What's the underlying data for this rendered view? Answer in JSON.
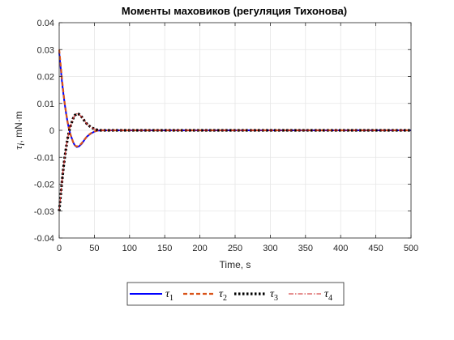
{
  "chart_data": {
    "type": "line",
    "title": "Моменты маховиков (регуляция Тихонова)",
    "xlabel": "Time, s",
    "ylabel": {
      "symbol": "τ",
      "sub": "i",
      "unit": ", mN·m"
    },
    "xlim": [
      0,
      500
    ],
    "ylim": [
      -0.04,
      0.04
    ],
    "xticks": [
      0,
      50,
      100,
      150,
      200,
      250,
      300,
      350,
      400,
      450,
      500
    ],
    "xtick_labels": [
      "0",
      "50",
      "100",
      "150",
      "200",
      "250",
      "300",
      "350",
      "400",
      "450",
      "500"
    ],
    "yticks": [
      -0.04,
      -0.03,
      -0.02,
      -0.01,
      0,
      0.01,
      0.02,
      0.03,
      0.04
    ],
    "ytick_labels": [
      "-0.04",
      "-0.03",
      "-0.02",
      "-0.01",
      "0",
      "0.01",
      "0.02",
      "0.03",
      "0.04"
    ],
    "grid": true,
    "legend_position": "bottom-center",
    "series": [
      {
        "symbol": "τ",
        "sub": "1",
        "color": "#0000ff",
        "style": "solid",
        "x": [
          0,
          2,
          4,
          6,
          8,
          10,
          12,
          14,
          16,
          18,
          20,
          22,
          25,
          28,
          32,
          36,
          40,
          45,
          50,
          55,
          60,
          70,
          80,
          100,
          500
        ],
        "y": [
          0.029,
          0.0235,
          0.018,
          0.0135,
          0.0095,
          0.006,
          0.003,
          0.0005,
          -0.0015,
          -0.003,
          -0.0045,
          -0.0055,
          -0.0062,
          -0.006,
          -0.005,
          -0.0035,
          -0.0022,
          -0.0012,
          -0.0005,
          -0.0001,
          0.0,
          0.0,
          0.0,
          0.0,
          0.0
        ]
      },
      {
        "symbol": "τ",
        "sub": "2",
        "color": "#d95319",
        "style": "dashed",
        "x": [
          0,
          2,
          4,
          6,
          8,
          10,
          12,
          14,
          16,
          18,
          20,
          22,
          25,
          28,
          32,
          36,
          40,
          45,
          50,
          55,
          60,
          70,
          80,
          100,
          500
        ],
        "y": [
          0.03,
          0.0245,
          0.019,
          0.014,
          0.0098,
          0.0062,
          0.003,
          0.0005,
          -0.0015,
          -0.003,
          -0.0045,
          -0.0055,
          -0.006,
          -0.0058,
          -0.0048,
          -0.0034,
          -0.0021,
          -0.0011,
          -0.0004,
          -0.0001,
          0.0,
          0.0,
          0.0,
          0.0,
          0.0
        ]
      },
      {
        "symbol": "τ",
        "sub": "3",
        "color": "#000000",
        "style": "dotted",
        "x": [
          0,
          2,
          4,
          6,
          8,
          10,
          12,
          14,
          16,
          18,
          20,
          22,
          25,
          28,
          32,
          36,
          40,
          45,
          50,
          55,
          60,
          70,
          80,
          100,
          500
        ],
        "y": [
          -0.03,
          -0.0245,
          -0.019,
          -0.014,
          -0.0098,
          -0.0062,
          -0.003,
          -0.0005,
          0.0015,
          0.003,
          0.0045,
          0.0055,
          0.0062,
          0.006,
          0.005,
          0.0035,
          0.0022,
          0.0012,
          0.0005,
          0.0001,
          0.0,
          0.0,
          0.0,
          0.0,
          0.0
        ]
      },
      {
        "symbol": "τ",
        "sub": "4",
        "color": "#cc2222",
        "style": "dashdot",
        "x": [
          0,
          2,
          4,
          6,
          8,
          10,
          12,
          14,
          16,
          18,
          20,
          22,
          25,
          28,
          32,
          36,
          40,
          45,
          50,
          55,
          60,
          70,
          80,
          100,
          500
        ],
        "y": [
          -0.03,
          -0.0245,
          -0.019,
          -0.014,
          -0.0098,
          -0.0062,
          -0.003,
          -0.0005,
          0.0015,
          0.003,
          0.0045,
          0.0055,
          0.0062,
          0.006,
          0.005,
          0.0035,
          0.0022,
          0.0012,
          0.0005,
          0.0001,
          0.0,
          0.0,
          0.0,
          0.0,
          0.0
        ]
      }
    ]
  }
}
